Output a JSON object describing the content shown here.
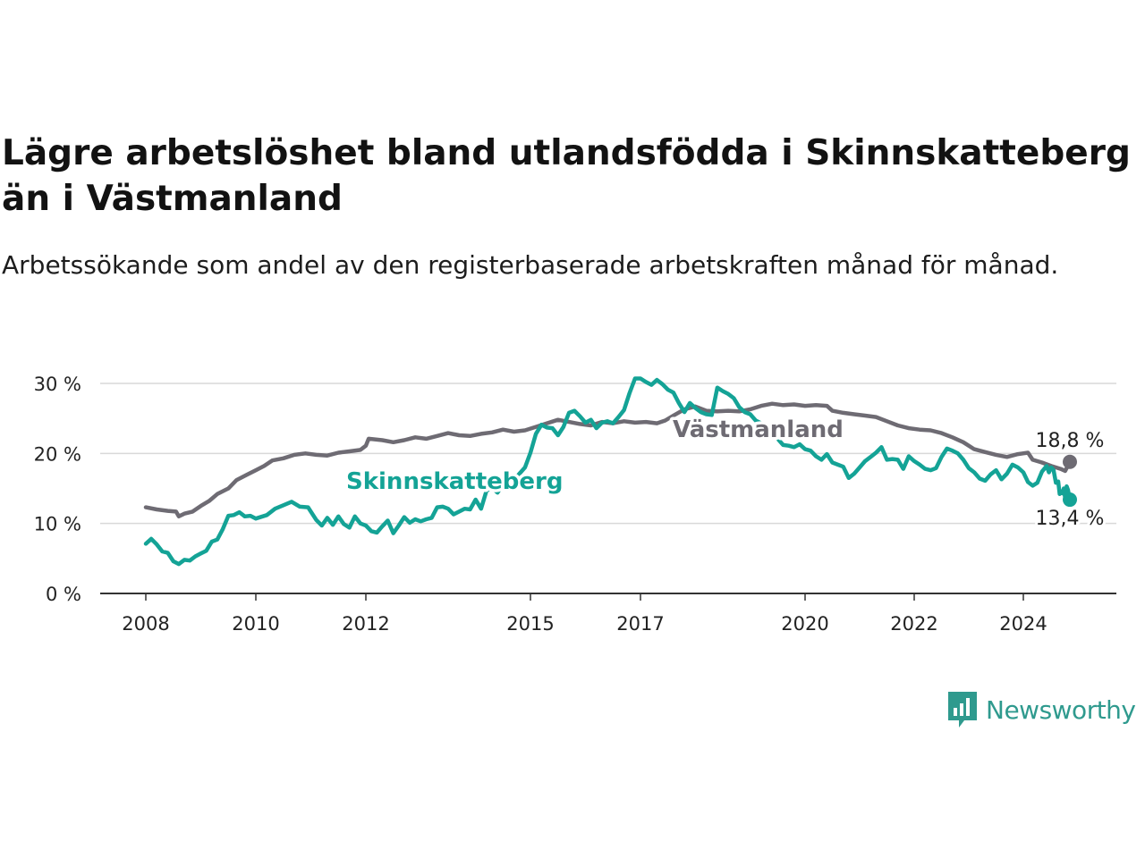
{
  "title": "Lägre arbetslöshet bland utlandsfödda i Skinnskatteberg än i Västmanland",
  "subtitle": "Arbetssökande som andel av den registerbaserade arbetskraften månad för månad.",
  "brand": {
    "name": "Newsworthy",
    "color": "#2f9a8e",
    "icon": "newsworthy-logo-icon"
  },
  "chart_data": {
    "type": "line",
    "x_ticks": [
      "2008",
      "2010",
      "2012",
      "2015",
      "2017",
      "2020",
      "2022",
      "2024"
    ],
    "y_ticks": [
      "0 %",
      "10 %",
      "20 %",
      "30 %"
    ],
    "ylim": [
      0,
      30
    ],
    "xlim": [
      2008.0,
      2025.0
    ],
    "grid": true,
    "series": [
      {
        "name": "Västmanland",
        "color": "#6e6b73",
        "end_label": "18,8 %",
        "points": [
          [
            2008.0,
            12.3
          ],
          [
            2008.2,
            12.0
          ],
          [
            2008.4,
            11.8
          ],
          [
            2008.55,
            11.7
          ],
          [
            2008.6,
            11.0
          ],
          [
            2008.7,
            11.4
          ],
          [
            2008.85,
            11.7
          ],
          [
            2009.0,
            12.5
          ],
          [
            2009.15,
            13.2
          ],
          [
            2009.3,
            14.2
          ],
          [
            2009.5,
            15.0
          ],
          [
            2009.65,
            16.2
          ],
          [
            2009.85,
            17.0
          ],
          [
            2010.0,
            17.6
          ],
          [
            2010.15,
            18.2
          ],
          [
            2010.3,
            19.0
          ],
          [
            2010.5,
            19.3
          ],
          [
            2010.7,
            19.8
          ],
          [
            2010.9,
            20.0
          ],
          [
            2011.1,
            19.8
          ],
          [
            2011.3,
            19.7
          ],
          [
            2011.5,
            20.1
          ],
          [
            2011.7,
            20.3
          ],
          [
            2011.9,
            20.5
          ],
          [
            2012.0,
            21.1
          ],
          [
            2012.05,
            22.1
          ],
          [
            2012.3,
            21.9
          ],
          [
            2012.5,
            21.6
          ],
          [
            2012.7,
            21.9
          ],
          [
            2012.9,
            22.3
          ],
          [
            2013.1,
            22.1
          ],
          [
            2013.3,
            22.5
          ],
          [
            2013.5,
            22.9
          ],
          [
            2013.7,
            22.6
          ],
          [
            2013.9,
            22.5
          ],
          [
            2014.1,
            22.8
          ],
          [
            2014.3,
            23.0
          ],
          [
            2014.5,
            23.4
          ],
          [
            2014.7,
            23.1
          ],
          [
            2014.9,
            23.3
          ],
          [
            2015.1,
            23.8
          ],
          [
            2015.3,
            24.3
          ],
          [
            2015.5,
            24.8
          ],
          [
            2015.7,
            24.5
          ],
          [
            2015.9,
            24.2
          ],
          [
            2016.1,
            24.0
          ],
          [
            2016.3,
            24.5
          ],
          [
            2016.5,
            24.3
          ],
          [
            2016.7,
            24.6
          ],
          [
            2016.9,
            24.4
          ],
          [
            2017.1,
            24.5
          ],
          [
            2017.3,
            24.3
          ],
          [
            2017.45,
            24.7
          ],
          [
            2017.6,
            25.4
          ],
          [
            2017.8,
            26.3
          ],
          [
            2018.0,
            26.7
          ],
          [
            2018.2,
            26.1
          ],
          [
            2018.4,
            26.0
          ],
          [
            2018.6,
            26.1
          ],
          [
            2018.8,
            26.0
          ],
          [
            2019.0,
            26.3
          ],
          [
            2019.2,
            26.8
          ],
          [
            2019.4,
            27.1
          ],
          [
            2019.6,
            26.9
          ],
          [
            2019.8,
            27.0
          ],
          [
            2020.0,
            26.8
          ],
          [
            2020.2,
            26.9
          ],
          [
            2020.4,
            26.8
          ],
          [
            2020.5,
            26.1
          ],
          [
            2020.7,
            25.8
          ],
          [
            2020.9,
            25.6
          ],
          [
            2021.1,
            25.4
          ],
          [
            2021.3,
            25.2
          ],
          [
            2021.5,
            24.6
          ],
          [
            2021.7,
            24.0
          ],
          [
            2021.9,
            23.6
          ],
          [
            2022.1,
            23.4
          ],
          [
            2022.3,
            23.3
          ],
          [
            2022.5,
            22.9
          ],
          [
            2022.7,
            22.3
          ],
          [
            2022.9,
            21.6
          ],
          [
            2023.1,
            20.6
          ],
          [
            2023.3,
            20.2
          ],
          [
            2023.5,
            19.8
          ],
          [
            2023.7,
            19.5
          ],
          [
            2023.9,
            19.9
          ],
          [
            2024.1,
            20.1
          ],
          [
            2024.2,
            19.1
          ],
          [
            2024.4,
            18.7
          ],
          [
            2024.6,
            18.2
          ],
          [
            2024.8,
            17.8
          ],
          [
            2024.9,
            17.5
          ],
          [
            2025.0,
            18.8
          ]
        ]
      },
      {
        "name": "Skinnskatteberg",
        "color": "#14a396",
        "end_label": "13,4 %",
        "points": [
          [
            2008.0,
            7.1
          ],
          [
            2008.1,
            7.8
          ],
          [
            2008.2,
            7.0
          ],
          [
            2008.3,
            6.0
          ],
          [
            2008.4,
            5.8
          ],
          [
            2008.5,
            4.6
          ],
          [
            2008.6,
            4.2
          ],
          [
            2008.7,
            4.8
          ],
          [
            2008.8,
            4.7
          ],
          [
            2008.9,
            5.3
          ],
          [
            2009.0,
            5.7
          ],
          [
            2009.1,
            6.1
          ],
          [
            2009.2,
            7.4
          ],
          [
            2009.3,
            7.7
          ],
          [
            2009.4,
            9.2
          ],
          [
            2009.5,
            11.1
          ],
          [
            2009.6,
            11.2
          ],
          [
            2009.7,
            11.6
          ],
          [
            2009.8,
            11.0
          ],
          [
            2009.9,
            11.1
          ],
          [
            2010.0,
            10.7
          ],
          [
            2010.2,
            11.2
          ],
          [
            2010.35,
            12.1
          ],
          [
            2010.5,
            12.6
          ],
          [
            2010.65,
            13.1
          ],
          [
            2010.8,
            12.4
          ],
          [
            2010.95,
            12.3
          ],
          [
            2011.1,
            10.5
          ],
          [
            2011.2,
            9.7
          ],
          [
            2011.3,
            10.8
          ],
          [
            2011.4,
            9.8
          ],
          [
            2011.5,
            11.0
          ],
          [
            2011.6,
            9.9
          ],
          [
            2011.7,
            9.4
          ],
          [
            2011.8,
            11.0
          ],
          [
            2011.9,
            10.0
          ],
          [
            2012.0,
            9.7
          ],
          [
            2012.1,
            8.9
          ],
          [
            2012.2,
            8.7
          ],
          [
            2012.3,
            9.6
          ],
          [
            2012.4,
            10.4
          ],
          [
            2012.5,
            8.6
          ],
          [
            2012.6,
            9.7
          ],
          [
            2012.7,
            10.9
          ],
          [
            2012.8,
            10.1
          ],
          [
            2012.9,
            10.6
          ],
          [
            2013.0,
            10.3
          ],
          [
            2013.1,
            10.6
          ],
          [
            2013.2,
            10.8
          ],
          [
            2013.3,
            12.3
          ],
          [
            2013.4,
            12.4
          ],
          [
            2013.5,
            12.1
          ],
          [
            2013.6,
            11.3
          ],
          [
            2013.7,
            11.7
          ],
          [
            2013.8,
            12.1
          ],
          [
            2013.9,
            12.0
          ],
          [
            2014.0,
            13.4
          ],
          [
            2014.1,
            12.1
          ],
          [
            2014.2,
            14.7
          ],
          [
            2014.3,
            15.1
          ],
          [
            2014.4,
            14.4
          ],
          [
            2014.5,
            15.6
          ],
          [
            2014.6,
            14.9
          ],
          [
            2014.7,
            16.2
          ],
          [
            2014.8,
            17.1
          ],
          [
            2014.9,
            18.0
          ],
          [
            2015.0,
            20.1
          ],
          [
            2015.1,
            22.8
          ],
          [
            2015.2,
            24.1
          ],
          [
            2015.3,
            23.7
          ],
          [
            2015.4,
            23.6
          ],
          [
            2015.5,
            22.6
          ],
          [
            2015.6,
            23.8
          ],
          [
            2015.7,
            25.8
          ],
          [
            2015.8,
            26.1
          ],
          [
            2015.9,
            25.3
          ],
          [
            2016.0,
            24.4
          ],
          [
            2016.1,
            24.8
          ],
          [
            2016.2,
            23.6
          ],
          [
            2016.3,
            24.4
          ],
          [
            2016.4,
            24.6
          ],
          [
            2016.5,
            24.3
          ],
          [
            2016.6,
            25.2
          ],
          [
            2016.7,
            26.2
          ],
          [
            2016.8,
            28.6
          ],
          [
            2016.9,
            30.7
          ],
          [
            2017.0,
            30.7
          ],
          [
            2017.1,
            30.2
          ],
          [
            2017.2,
            29.8
          ],
          [
            2017.3,
            30.5
          ],
          [
            2017.4,
            29.9
          ],
          [
            2017.5,
            29.1
          ],
          [
            2017.6,
            28.7
          ],
          [
            2017.7,
            27.2
          ],
          [
            2017.8,
            25.9
          ],
          [
            2017.9,
            27.2
          ],
          [
            2018.0,
            26.5
          ],
          [
            2018.1,
            25.9
          ],
          [
            2018.2,
            25.6
          ],
          [
            2018.3,
            25.5
          ],
          [
            2018.4,
            29.4
          ],
          [
            2018.5,
            28.9
          ],
          [
            2018.6,
            28.5
          ],
          [
            2018.7,
            27.9
          ],
          [
            2018.8,
            26.6
          ],
          [
            2018.9,
            25.9
          ],
          [
            2019.0,
            25.6
          ],
          [
            2019.1,
            24.7
          ],
          [
            2019.2,
            24.3
          ],
          [
            2019.3,
            23.6
          ],
          [
            2019.4,
            22.9
          ],
          [
            2019.5,
            22.1
          ],
          [
            2019.6,
            21.2
          ],
          [
            2019.7,
            21.1
          ],
          [
            2019.8,
            20.9
          ],
          [
            2019.9,
            21.3
          ],
          [
            2020.0,
            20.6
          ],
          [
            2020.1,
            20.4
          ],
          [
            2020.2,
            19.6
          ],
          [
            2020.3,
            19.1
          ],
          [
            2020.4,
            19.9
          ],
          [
            2020.5,
            18.7
          ],
          [
            2020.6,
            18.4
          ],
          [
            2020.7,
            18.1
          ],
          [
            2020.8,
            16.5
          ],
          [
            2020.9,
            17.1
          ],
          [
            2021.0,
            18.0
          ],
          [
            2021.1,
            18.9
          ],
          [
            2021.2,
            19.5
          ],
          [
            2021.3,
            20.1
          ],
          [
            2021.4,
            20.9
          ],
          [
            2021.5,
            19.1
          ],
          [
            2021.6,
            19.2
          ],
          [
            2021.7,
            19.1
          ],
          [
            2021.8,
            17.8
          ],
          [
            2021.9,
            19.6
          ],
          [
            2022.0,
            18.9
          ],
          [
            2022.1,
            18.4
          ],
          [
            2022.2,
            17.8
          ],
          [
            2022.3,
            17.6
          ],
          [
            2022.4,
            17.9
          ],
          [
            2022.5,
            19.5
          ],
          [
            2022.6,
            20.7
          ],
          [
            2022.7,
            20.4
          ],
          [
            2022.8,
            20.0
          ],
          [
            2022.9,
            19.1
          ],
          [
            2023.0,
            17.9
          ],
          [
            2023.1,
            17.3
          ],
          [
            2023.2,
            16.4
          ],
          [
            2023.3,
            16.1
          ],
          [
            2023.4,
            17.0
          ],
          [
            2023.5,
            17.6
          ],
          [
            2023.6,
            16.3
          ],
          [
            2023.7,
            17.1
          ],
          [
            2023.8,
            18.4
          ],
          [
            2023.9,
            18.0
          ],
          [
            2024.0,
            17.3
          ],
          [
            2024.1,
            15.9
          ],
          [
            2024.2,
            15.4
          ],
          [
            2024.3,
            15.8
          ],
          [
            2024.4,
            17.4
          ],
          [
            2024.5,
            18.2
          ],
          [
            2024.55,
            17.3
          ],
          [
            2024.6,
            18.0
          ],
          [
            2024.65,
            17.6
          ],
          [
            2024.7,
            15.8
          ],
          [
            2024.75,
            16.0
          ],
          [
            2024.78,
            14.2
          ],
          [
            2024.81,
            14.6
          ],
          [
            2024.84,
            14.3
          ],
          [
            2024.87,
            15.0
          ],
          [
            2024.9,
            13.6
          ],
          [
            2024.93,
            15.3
          ],
          [
            2024.96,
            14.8
          ],
          [
            2025.0,
            13.4
          ]
        ]
      }
    ]
  }
}
